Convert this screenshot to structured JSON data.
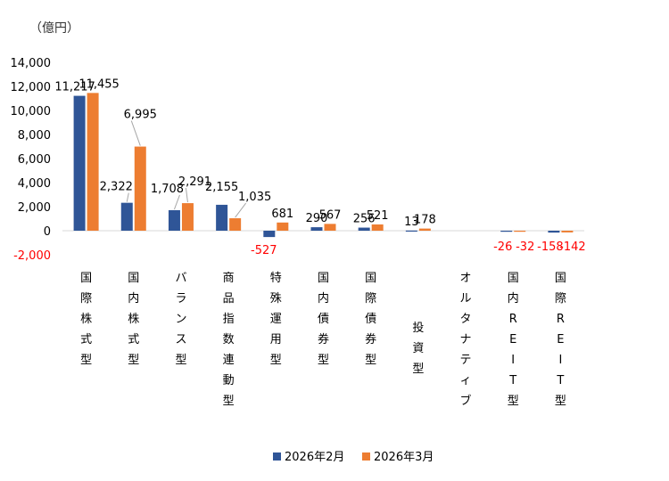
{
  "chart_data": {
    "type": "bar",
    "unit_label": "（億円）",
    "title": "",
    "xlabel": "",
    "ylabel": "",
    "ylim": [
      -2000,
      14000
    ],
    "yticks": [
      -2000,
      0,
      2000,
      4000,
      6000,
      8000,
      10000,
      12000,
      14000
    ],
    "ytick_labels": [
      "-2,000",
      "0",
      "2,000",
      "4,000",
      "6,000",
      "8,000",
      "10,000",
      "12,000",
      "14,000"
    ],
    "grid": false,
    "legend_position": "bottom",
    "categories": [
      "国際株式型",
      "国内株式型",
      "バランス型",
      "商品指数連動型",
      "特殊運用型",
      "国内債券型",
      "国際債券型",
      "投資型",
      "オルタナティブ",
      "国内REIT型",
      "国際REIT型"
    ],
    "series": [
      {
        "name": "2026年2月",
        "color": "#2F5597",
        "values": [
          11217,
          2322,
          1708,
          2155,
          -527,
          290,
          256,
          13,
          null,
          -26,
          -158
        ],
        "labels": [
          "11,217",
          "2,322",
          "1,708",
          "2,155",
          "-527",
          "290",
          "256",
          "13",
          "",
          "-26",
          "-158"
        ]
      },
      {
        "name": "2026年3月",
        "color": "#ED7D31",
        "values": [
          11455,
          6995,
          2291,
          1035,
          681,
          567,
          521,
          178,
          null,
          -32,
          -142
        ],
        "labels": [
          "11,455",
          "6,995",
          "2,291",
          "1,035",
          "681",
          "567",
          "521",
          "178",
          "",
          "-32",
          "-142"
        ]
      }
    ],
    "negative_label_color": "#FF0000",
    "label_color": "#000000",
    "axis_label_color": "#000000"
  }
}
